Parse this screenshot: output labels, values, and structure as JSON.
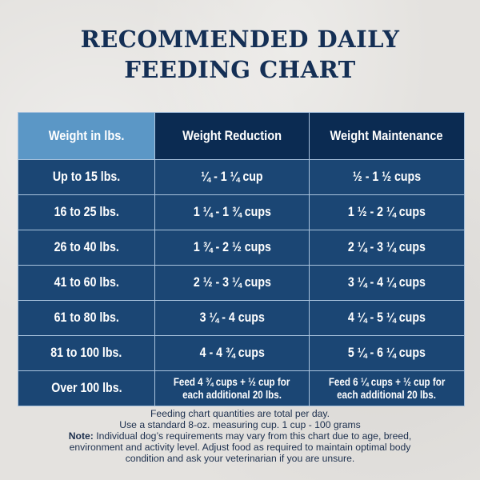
{
  "title": {
    "line1": "RECOMMENDED DAILY",
    "line2": "FEEDING CHART"
  },
  "colors": {
    "title": "#142f55",
    "header_first": "#5b97c6",
    "header_other": "#0b2b52",
    "body_cell": "#1b4674",
    "grid": "#a9c2dd"
  },
  "table": {
    "headers": [
      "Weight in lbs.",
      "Weight Reduction",
      "Weight Maintenance"
    ],
    "rows": [
      [
        "Up to 15 lbs.",
        "¼ - 1 ¼ cup",
        "½ - 1 ½ cups"
      ],
      [
        "16 to 25 lbs.",
        "1 ¼ - 1 ¾ cups",
        "1 ½ - 2 ¼ cups"
      ],
      [
        "26 to 40 lbs.",
        "1 ¾ - 2 ½ cups",
        "2 ¼ - 3 ¼ cups"
      ],
      [
        "41 to 60 lbs.",
        "2 ½ - 3 ¼ cups",
        "3 ¼ - 4 ¼ cups"
      ],
      [
        "61 to 80 lbs.",
        "3 ¼ - 4 cups",
        "4 ¼ - 5 ¼ cups"
      ],
      [
        "81 to 100 lbs.",
        "4 - 4 ¾ cups",
        "5 ¼ - 6 ¼ cups"
      ],
      [
        "Over 100 lbs.",
        "Feed 4 ¾ cups + ½ cup for each additional 20 lbs.",
        "Feed 6 ¼ cups + ½ cup for each additional 20 lbs."
      ]
    ],
    "last_row_split": {
      "reduction": [
        "Feed 4 ¾ cups + ½ cup for",
        "each additional 20 lbs."
      ],
      "maintenance": [
        "Feed 6 ¼ cups + ½ cup for",
        "each additional 20 lbs."
      ]
    }
  },
  "notes": {
    "line1": "Feeding chart quantities are total per day.",
    "line2": "Use a standard 8-oz. measuring cup. 1 cup - 100 grams",
    "note_label": "Note:",
    "note_text_1": " Individual dog’s requirements may vary from this chart due to age, breed,",
    "note_text_2": "environment and activity level. Adjust food as required to maintain optimal body",
    "note_text_3": "condition and ask your veterinarian if you are unsure."
  }
}
